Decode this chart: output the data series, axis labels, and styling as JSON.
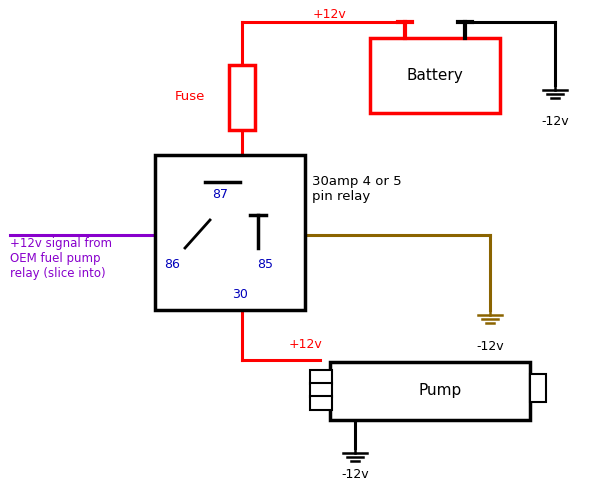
{
  "bg_color": "#ffffff",
  "red": "#ff0000",
  "black": "#000000",
  "blue": "#0000bb",
  "purple": "#8800cc",
  "brown": "#8B6400",
  "relay_label": "30amp 4 or 5\npin relay",
  "battery_label": "Battery",
  "pump_label": "Pump",
  "fuse_label": "Fuse",
  "signal_label": "+12v signal from\nOEM fuel pump\nrelay (slice into)",
  "plus12v_batt": "+12v",
  "plus12v_pump": "+12v",
  "minus12v_batt": "-12v",
  "minus12v_85": "-12v",
  "minus12v_pump": "-12v"
}
